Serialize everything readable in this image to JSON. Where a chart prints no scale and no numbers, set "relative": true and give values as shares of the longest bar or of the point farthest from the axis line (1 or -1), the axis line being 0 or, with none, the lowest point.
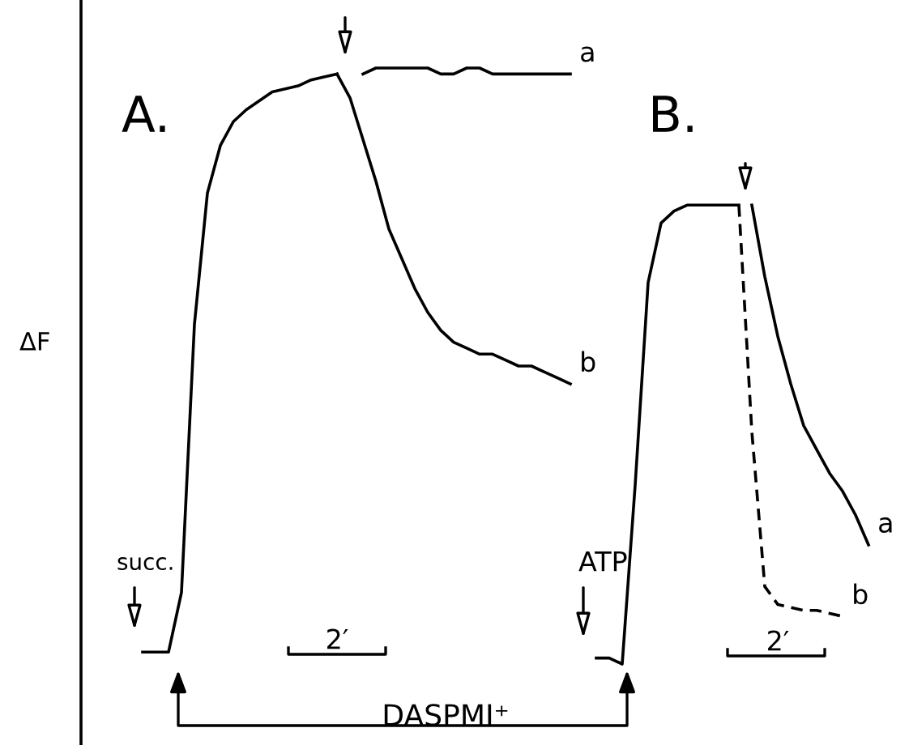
{
  "chart_data": {
    "type": "line",
    "relative": true,
    "ylabel": "ΔF",
    "annotations": [
      "A.",
      "B.",
      "succ.",
      "ATP",
      "2′",
      "2′",
      "DASPMI⁺"
    ],
    "categories": [
      null,
      null,
      null,
      null,
      null,
      null,
      null,
      null,
      null,
      null,
      null,
      null,
      null,
      null,
      null,
      null,
      null,
      null,
      null,
      null,
      null,
      null,
      null,
      null,
      null,
      null,
      null,
      null,
      null,
      null,
      null,
      null,
      null,
      null,
      null,
      null,
      null,
      null,
      null,
      null,
      null,
      null,
      null,
      null,
      null,
      null,
      null,
      null,
      null,
      null,
      null,
      null,
      null,
      null,
      null,
      null,
      null,
      null
    ],
    "series": [
      {
        "color": "#000000",
        "line_style": "solid",
        "values": [
          null,
          0.02,
          0.02,
          0.02,
          0.12,
          0.57,
          0.79,
          0.87,
          0.91,
          0.93,
          0.945,
          0.96,
          0.965,
          0.97,
          0.98,
          0.985,
          0.99,
          null,
          null,
          null,
          null,
          null,
          null,
          null,
          null,
          null,
          null,
          null,
          null,
          null,
          null,
          null,
          null,
          null,
          null,
          null,
          null,
          null,
          null,
          null,
          null,
          null,
          null,
          null,
          null,
          null,
          null,
          null,
          null,
          null,
          null,
          null,
          null,
          null,
          null,
          null,
          null,
          null
        ]
      },
      {
        "name": "a",
        "color": "#000000",
        "line_style": "solid",
        "values": [
          null,
          null,
          null,
          null,
          null,
          null,
          null,
          null,
          null,
          null,
          null,
          null,
          null,
          null,
          null,
          null,
          null,
          null,
          0.99,
          1.0,
          1.0,
          1.0,
          1.0,
          1.0,
          0.99,
          0.99,
          1.0,
          1.0,
          0.99,
          0.99,
          0.99,
          0.99,
          0.99,
          0.99,
          0.99,
          null,
          null,
          null,
          null,
          null,
          null,
          null,
          null,
          null,
          null,
          null,
          null,
          null,
          null,
          null,
          null,
          null,
          null,
          null,
          null,
          null,
          null,
          null
        ]
      },
      {
        "name": "b",
        "color": "#000000",
        "line_style": "solid",
        "values": [
          null,
          null,
          null,
          null,
          null,
          null,
          null,
          null,
          null,
          null,
          null,
          null,
          null,
          null,
          null,
          null,
          0.99,
          0.95,
          0.88,
          0.81,
          0.73,
          0.68,
          0.63,
          0.59,
          0.56,
          0.54,
          0.53,
          0.52,
          0.52,
          0.51,
          0.5,
          0.5,
          0.49,
          0.48,
          0.47,
          null,
          null,
          null,
          null,
          null,
          null,
          null,
          null,
          null,
          null,
          null,
          null,
          null,
          null,
          null,
          null,
          null,
          null,
          null,
          null,
          null,
          null,
          null
        ]
      },
      {
        "color": "#000000",
        "line_style": "solid",
        "values": [
          null,
          null,
          null,
          null,
          null,
          null,
          null,
          null,
          null,
          null,
          null,
          null,
          null,
          null,
          null,
          null,
          null,
          null,
          null,
          null,
          null,
          null,
          null,
          null,
          null,
          null,
          null,
          null,
          null,
          null,
          null,
          null,
          null,
          null,
          null,
          null,
          0.01,
          0.01,
          0.0,
          0.3,
          0.64,
          0.74,
          0.76,
          0.77,
          0.77,
          0.77,
          0.77,
          0.77,
          null,
          null,
          null,
          null,
          null,
          null,
          null,
          null,
          null,
          null
        ]
      },
      {
        "name": "a",
        "color": "#000000",
        "line_style": "solid",
        "values": [
          null,
          null,
          null,
          null,
          null,
          null,
          null,
          null,
          null,
          null,
          null,
          null,
          null,
          null,
          null,
          null,
          null,
          null,
          null,
          null,
          null,
          null,
          null,
          null,
          null,
          null,
          null,
          null,
          null,
          null,
          null,
          null,
          null,
          null,
          null,
          null,
          null,
          null,
          null,
          null,
          null,
          null,
          null,
          null,
          null,
          null,
          null,
          null,
          0.77,
          0.65,
          0.55,
          0.47,
          0.4,
          0.36,
          0.32,
          0.29,
          0.25,
          0.2
        ]
      },
      {
        "name": "b",
        "color": "#000000",
        "line_style": "dashed",
        "values": [
          null,
          null,
          null,
          null,
          null,
          null,
          null,
          null,
          null,
          null,
          null,
          null,
          null,
          null,
          null,
          null,
          null,
          null,
          null,
          null,
          null,
          null,
          null,
          null,
          null,
          null,
          null,
          null,
          null,
          null,
          null,
          null,
          null,
          null,
          null,
          null,
          null,
          null,
          null,
          null,
          null,
          null,
          null,
          null,
          null,
          null,
          null,
          0.77,
          0.39,
          0.13,
          0.1,
          0.095,
          0.09,
          0.09,
          0.085,
          0.08,
          null,
          null
        ]
      }
    ]
  }
}
